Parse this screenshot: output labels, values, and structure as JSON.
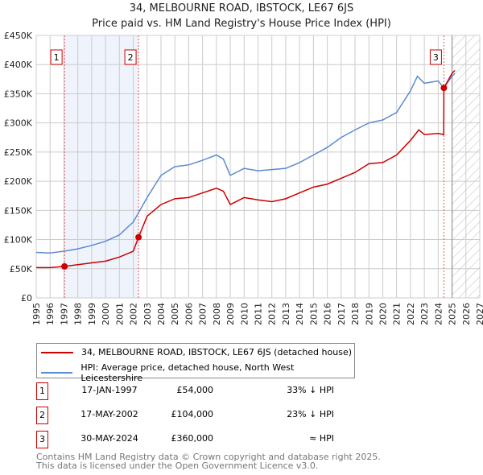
{
  "title": "34, MELBOURNE ROAD, IBSTOCK, LE67 6JS",
  "subtitle": "Price paid vs. HM Land Registry's House Price Index (HPI)",
  "chart_data": {
    "type": "line",
    "xlim": [
      1995,
      2027
    ],
    "ylim": [
      0,
      450000
    ],
    "xticks": [
      "1995",
      "1996",
      "1997",
      "1998",
      "1999",
      "2000",
      "2001",
      "2002",
      "2003",
      "2004",
      "2005",
      "2006",
      "2007",
      "2008",
      "2009",
      "2010",
      "2011",
      "2012",
      "2013",
      "2014",
      "2015",
      "2016",
      "2017",
      "2018",
      "2019",
      "2020",
      "2021",
      "2022",
      "2023",
      "2024",
      "2025",
      "2026",
      "2027"
    ],
    "yticks": [
      {
        "v": 0,
        "l": "£0"
      },
      {
        "v": 50000,
        "l": "£50K"
      },
      {
        "v": 100000,
        "l": "£100K"
      },
      {
        "v": 150000,
        "l": "£150K"
      },
      {
        "v": 200000,
        "l": "£200K"
      },
      {
        "v": 250000,
        "l": "£250K"
      },
      {
        "v": 300000,
        "l": "£300K"
      },
      {
        "v": 350000,
        "l": "£350K"
      },
      {
        "v": 400000,
        "l": "£400K"
      },
      {
        "v": 450000,
        "l": "£450K"
      }
    ],
    "shaded_range": [
      1997.04,
      2002.38
    ],
    "forecast_from": 2025.0,
    "series": [
      {
        "name": "34, MELBOURNE ROAD, IBSTOCK, LE67 6JS (detached house)",
        "color": "#cc0000",
        "x": [
          1995,
          1996,
          1997.04,
          1998,
          1999,
          2000,
          2001,
          2002,
          2002.38,
          2003,
          2004,
          2005,
          2006,
          2007,
          2008,
          2008.5,
          2009,
          2010,
          2011,
          2012,
          2013,
          2014,
          2015,
          2016,
          2017,
          2018,
          2019,
          2020,
          2021,
          2022,
          2022.6,
          2023,
          2024,
          2024.4,
          2024.41,
          2025,
          2025.2
        ],
        "y": [
          52000,
          52000,
          54000,
          57000,
          60000,
          63000,
          70000,
          80000,
          104000,
          140000,
          160000,
          170000,
          172000,
          180000,
          188000,
          183000,
          160000,
          172000,
          168000,
          165000,
          170000,
          180000,
          190000,
          195000,
          205000,
          215000,
          230000,
          232000,
          245000,
          270000,
          288000,
          280000,
          282000,
          280000,
          360000,
          385000,
          390000
        ]
      },
      {
        "name": "HPI: Average price, detached house, North West Leicestershire",
        "color": "#5b8bd0",
        "x": [
          1995,
          1996,
          1997,
          1998,
          1999,
          2000,
          2001,
          2002,
          2003,
          2004,
          2005,
          2006,
          2007,
          2008,
          2008.5,
          2009,
          2010,
          2011,
          2012,
          2013,
          2014,
          2015,
          2016,
          2017,
          2018,
          2019,
          2020,
          2021,
          2022,
          2022.5,
          2023,
          2024,
          2024.4,
          2025,
          2025.2
        ],
        "y": [
          78000,
          77000,
          80000,
          84000,
          90000,
          97000,
          108000,
          130000,
          172000,
          210000,
          225000,
          228000,
          236000,
          245000,
          238000,
          210000,
          222000,
          218000,
          220000,
          222000,
          232000,
          245000,
          258000,
          275000,
          288000,
          300000,
          305000,
          318000,
          355000,
          380000,
          368000,
          372000,
          360000,
          380000,
          385000
        ]
      }
    ],
    "sales": [
      {
        "n": "1",
        "date": "17-JAN-1997",
        "price": "£54,000",
        "rel": "33% ↓ HPI",
        "x": 1997.04,
        "y": 54000
      },
      {
        "n": "2",
        "date": "17-MAY-2002",
        "price": "£104,000",
        "rel": "23% ↓ HPI",
        "x": 2002.38,
        "y": 104000
      },
      {
        "n": "3",
        "date": "30-MAY-2024",
        "price": "£360,000",
        "rel": "≈ HPI",
        "x": 2024.41,
        "y": 360000
      }
    ]
  },
  "legend": {
    "red": "34, MELBOURNE ROAD, IBSTOCK, LE67 6JS (detached house)",
    "blue": "HPI: Average price, detached house, North West Leicestershire"
  },
  "footer": {
    "line1": "Contains HM Land Registry data © Crown copyright and database right 2025.",
    "line2": "This data is licensed under the Open Government Licence v3.0."
  }
}
